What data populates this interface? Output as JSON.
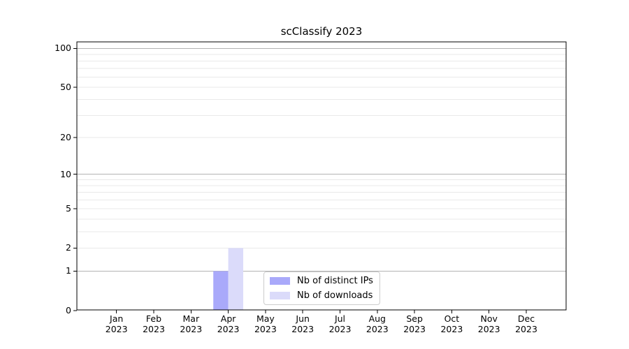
{
  "chart_data": {
    "type": "bar",
    "title": "scClassify 2023",
    "x_tick_months": [
      "Jan",
      "Feb",
      "Mar",
      "Apr",
      "May",
      "Jun",
      "Jul",
      "Aug",
      "Sep",
      "Oct",
      "Nov",
      "Dec"
    ],
    "x_tick_year": "2023",
    "series": [
      {
        "name": "Nb of distinct IPs",
        "color": "#a9a9fa",
        "values": [
          0,
          0,
          0,
          1,
          0,
          0,
          0,
          0,
          0,
          0,
          0,
          0
        ]
      },
      {
        "name": "Nb of downloads",
        "color": "#dbdbfa",
        "values": [
          0,
          0,
          0,
          2,
          0,
          0,
          0,
          0,
          0,
          0,
          0,
          0
        ]
      }
    ],
    "y_axis": {
      "scale": "log10(1+y)",
      "tick_values": [
        0,
        1,
        2,
        5,
        10,
        20,
        50,
        100
      ],
      "tick_labels": [
        "0",
        "1",
        "2",
        "5",
        "10",
        "20",
        "50",
        "100"
      ],
      "major_gridlines": [
        1,
        10,
        100
      ],
      "minor_gridlines": [
        2,
        3,
        4,
        5,
        6,
        7,
        8,
        9,
        20,
        30,
        40,
        50,
        60,
        70,
        80,
        90
      ],
      "ylim": [
        0,
        112
      ]
    },
    "legend": {
      "position": "lower center",
      "entries": [
        "Nb of distinct IPs",
        "Nb of downloads"
      ]
    },
    "grid": true
  },
  "colors": {
    "background": "#ffffff",
    "spine": "#000000",
    "tick": "#000000",
    "grid_major": "#b3b3b3",
    "grid_minor": "#e9e9e9",
    "text": "#000000",
    "legend_border": "#cccccc"
  }
}
